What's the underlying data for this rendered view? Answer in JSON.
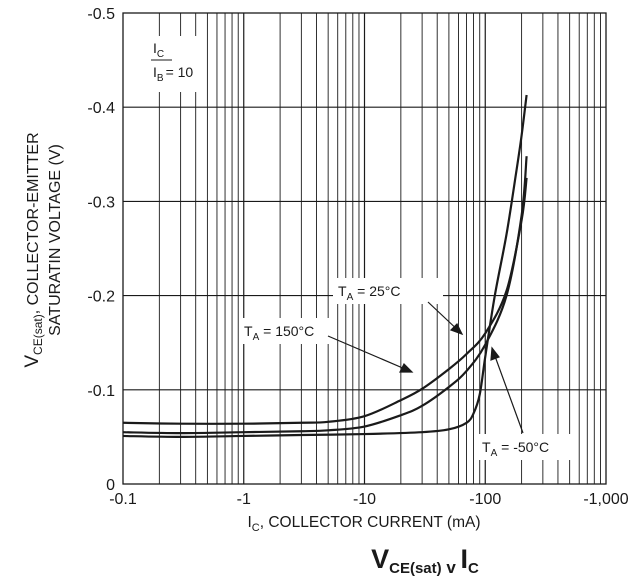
{
  "chart_data": {
    "type": "line",
    "title": {
      "main": "V",
      "main_sub": "CE(sat)",
      "mid": " v ",
      "tail": "I",
      "tail_sub": "C"
    },
    "xlabel": {
      "pre": "I",
      "sub": "C",
      "post": ", COLLECTOR CURRENT (mA)"
    },
    "ylabel": {
      "line1_pre": "V",
      "line1_sub": "CE(sat)",
      "line1_post": ", COLLECTOR-EMITTER",
      "line2": "SATURATIN VOLTAGE (V)"
    },
    "x_scale": "log",
    "x_magnitude_range": [
      0.1,
      1000
    ],
    "xlim": [
      -0.1,
      -1000
    ],
    "ylim": [
      0,
      -0.5
    ],
    "x_ticks": [
      "-0.1",
      "-1",
      "-10",
      "-100",
      "-1,000"
    ],
    "y_ticks": [
      "0",
      "-0.1",
      "-0.2",
      "-0.3",
      "-0.4",
      "-0.5"
    ],
    "y_tick_values": [
      0,
      -0.1,
      -0.2,
      -0.3,
      -0.4,
      -0.5
    ],
    "grid": true,
    "condition": {
      "num": "I",
      "num_sub": "C",
      "den": "I",
      "den_sub": "B",
      "value": "= 10"
    },
    "series": [
      {
        "name": "T_A = 25°C",
        "label": {
          "pre": "T",
          "sub": "A",
          "post": " = 25°C"
        },
        "x": [
          -0.1,
          -0.3,
          -1,
          -3,
          -5,
          -10,
          -20,
          -30,
          -50,
          -70,
          -100,
          -150,
          -200,
          -220
        ],
        "y": [
          -0.055,
          -0.054,
          -0.055,
          -0.056,
          -0.057,
          -0.061,
          -0.073,
          -0.083,
          -0.103,
          -0.12,
          -0.148,
          -0.2,
          -0.285,
          -0.348
        ]
      },
      {
        "name": "T_A = 150°C",
        "label": {
          "pre": "T",
          "sub": "A",
          "post": " = 150°C"
        },
        "x": [
          -0.1,
          -0.3,
          -1,
          -3,
          -5,
          -10,
          -20,
          -30,
          -50,
          -70,
          -100,
          -150,
          -200,
          -220
        ],
        "y": [
          -0.065,
          -0.064,
          -0.064,
          -0.065,
          -0.066,
          -0.072,
          -0.089,
          -0.101,
          -0.122,
          -0.138,
          -0.16,
          -0.205,
          -0.28,
          -0.325
        ]
      },
      {
        "name": "T_A = -50°C",
        "label": {
          "pre": "T",
          "sub": "A",
          "post": " = -50°C"
        },
        "x": [
          -0.1,
          -0.3,
          -1,
          -3,
          -10,
          -30,
          -50,
          -70,
          -80,
          -90,
          -100,
          -120,
          -150,
          -180,
          -200,
          -220
        ],
        "y": [
          -0.051,
          -0.05,
          -0.051,
          -0.052,
          -0.053,
          -0.055,
          -0.058,
          -0.065,
          -0.075,
          -0.095,
          -0.135,
          -0.2,
          -0.265,
          -0.33,
          -0.37,
          -0.413
        ]
      }
    ],
    "line_color": "#1a1a1a",
    "grid_color": "#1a1a1a"
  }
}
